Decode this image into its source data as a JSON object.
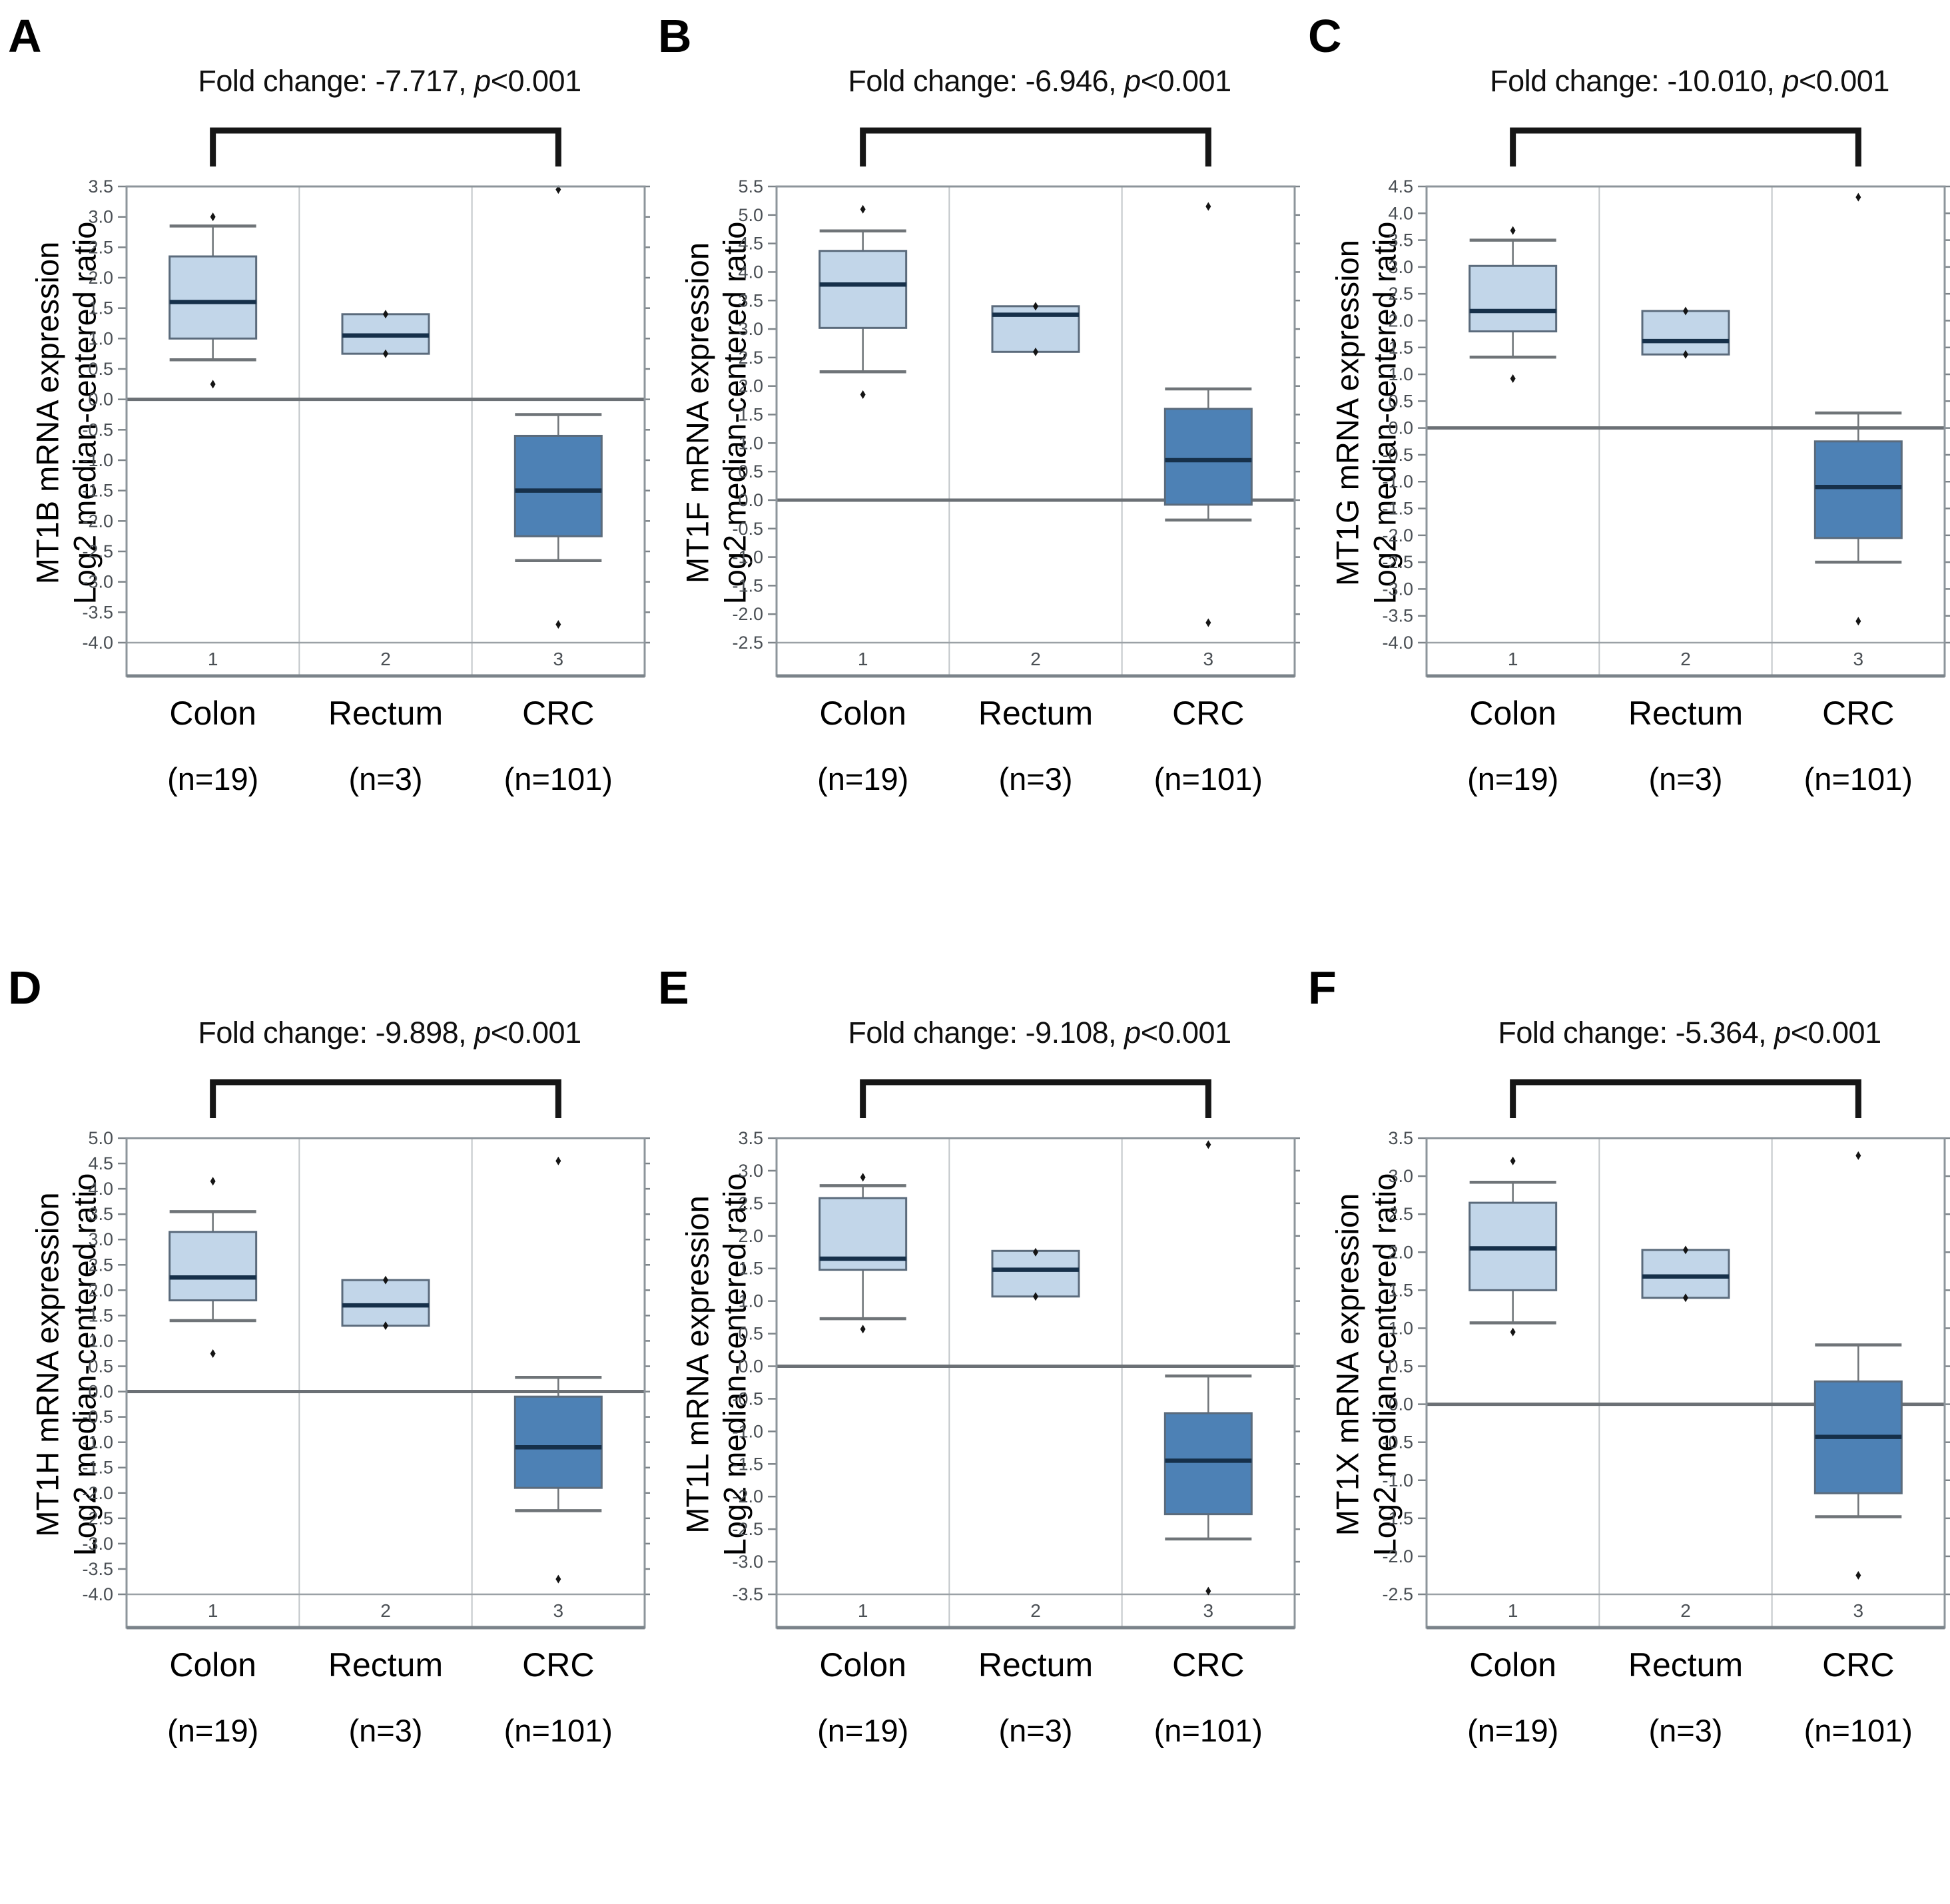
{
  "figure": {
    "background": "#ffffff",
    "description": "Six Oncomine box plots of metallothionein gene mRNA expression in Colon, Rectum and CRC samples"
  },
  "style": {
    "light_fill": "#c2d6e9",
    "dark_fill": "#4d81b5",
    "box_border": "#5b6b7c",
    "median_color": "#16304a",
    "whisker_color": "#6f7478",
    "frame_color": "#8d959b",
    "frame_bottom_color": "#7b838a",
    "separator_color": "#c2c6c9",
    "zero_line_color": "#6b7075",
    "min_line_color": "#9ba1a6",
    "tick_color": "#7d8489",
    "tick_label_color": "#4a4f54",
    "outlier_color": "#141414",
    "bracket_color": "#161616"
  },
  "panels": [
    {
      "letter": "A",
      "fold_text": "Fold change: -7.717, ",
      "p_symbol": "p",
      "p_value": "<0.001",
      "ylabel_line1": "MT1B mRNA expression",
      "ylabel_line2": "Log2 median-centered ratio",
      "groups": [
        {
          "name": "Colon",
          "n": "(n=19)",
          "tick": "1"
        },
        {
          "name": "Rectum",
          "n": "(n=3)",
          "tick": "2"
        },
        {
          "name": "CRC",
          "n": "(n=101)",
          "tick": "3"
        }
      ]
    },
    {
      "letter": "B",
      "fold_text": "Fold change: -6.946, ",
      "p_symbol": "p",
      "p_value": "<0.001",
      "ylabel_line1": "MT1F mRNA expression",
      "ylabel_line2": "Log2 median-centered ratio",
      "groups": [
        {
          "name": "Colon",
          "n": "(n=19)",
          "tick": "1"
        },
        {
          "name": "Rectum",
          "n": "(n=3)",
          "tick": "2"
        },
        {
          "name": "CRC",
          "n": "(n=101)",
          "tick": "3"
        }
      ]
    },
    {
      "letter": "C",
      "fold_text": "Fold change: -10.010, ",
      "p_symbol": "p",
      "p_value": "<0.001",
      "ylabel_line1": "MT1G mRNA expression",
      "ylabel_line2": "Log2 median-centered ratio",
      "groups": [
        {
          "name": "Colon",
          "n": "(n=19)",
          "tick": "1"
        },
        {
          "name": "Rectum",
          "n": "(n=3)",
          "tick": "2"
        },
        {
          "name": "CRC",
          "n": "(n=101)",
          "tick": "3"
        }
      ]
    },
    {
      "letter": "D",
      "fold_text": "Fold change: -9.898, ",
      "p_symbol": "p",
      "p_value": "<0.001",
      "ylabel_line1": "MT1H mRNA expression",
      "ylabel_line2": "Log2 median-centered ratio",
      "groups": [
        {
          "name": "Colon",
          "n": "(n=19)",
          "tick": "1"
        },
        {
          "name": "Rectum",
          "n": "(n=3)",
          "tick": "2"
        },
        {
          "name": "CRC",
          "n": "(n=101)",
          "tick": "3"
        }
      ]
    },
    {
      "letter": "E",
      "fold_text": "Fold change: -9.108, ",
      "p_symbol": "p",
      "p_value": "<0.001",
      "ylabel_line1": "MT1L mRNA expression",
      "ylabel_line2": "Log2 median-centered ratio",
      "groups": [
        {
          "name": "Colon",
          "n": "(n=19)",
          "tick": "1"
        },
        {
          "name": "Rectum",
          "n": "(n=3)",
          "tick": "2"
        },
        {
          "name": "CRC",
          "n": "(n=101)",
          "tick": "3"
        }
      ]
    },
    {
      "letter": "F",
      "fold_text": "Fold change: -5.364, ",
      "p_symbol": "p",
      "p_value": "<0.001",
      "ylabel_line1": "MT1X mRNA expression",
      "ylabel_line2": "Log2 median-centered ratio",
      "groups": [
        {
          "name": "Colon",
          "n": "(n=19)",
          "tick": "1"
        },
        {
          "name": "Rectum",
          "n": "(n=3)",
          "tick": "2"
        },
        {
          "name": "CRC",
          "n": "(n=101)",
          "tick": "3"
        }
      ]
    }
  ],
  "chart_data": [
    {
      "type": "box",
      "gene": "MT1B",
      "title": "Fold change: -7.717, p<0.001",
      "fold_change": -7.717,
      "p": "<0.001",
      "ylabel": "MT1B mRNA expression Log2 median-centered ratio",
      "ylim": [
        -4.0,
        3.5
      ],
      "ytick_step": 0.5,
      "categories": [
        "Colon (n=19)",
        "Rectum (n=3)",
        "CRC (n=101)"
      ],
      "boxes": [
        {
          "label": "Colon",
          "n": 19,
          "fill": "light",
          "whislo": 0.65,
          "q1": 1.0,
          "med": 1.6,
          "q3": 2.35,
          "whishi": 2.85,
          "outliers": [
            3.0,
            0.25
          ]
        },
        {
          "label": "Rectum",
          "n": 3,
          "fill": "light",
          "whislo": 0.75,
          "q1": 0.75,
          "med": 1.05,
          "q3": 1.4,
          "whishi": 1.4,
          "outliers": [
            1.4,
            0.75
          ]
        },
        {
          "label": "CRC",
          "n": 101,
          "fill": "dark",
          "whislo": -2.65,
          "q1": -2.25,
          "med": -1.5,
          "q3": -0.6,
          "whishi": -0.25,
          "outliers": [
            3.45,
            -3.7
          ]
        }
      ]
    },
    {
      "type": "box",
      "gene": "MT1F",
      "title": "Fold change: -6.946, p<0.001",
      "fold_change": -6.946,
      "p": "<0.001",
      "ylabel": "MT1F mRNA expression Log2 median-centered ratio",
      "ylim": [
        -2.5,
        5.5
      ],
      "ytick_step": 0.5,
      "categories": [
        "Colon (n=19)",
        "Rectum (n=3)",
        "CRC (n=101)"
      ],
      "boxes": [
        {
          "label": "Colon",
          "n": 19,
          "fill": "light",
          "whislo": 2.25,
          "q1": 3.02,
          "med": 3.78,
          "q3": 4.37,
          "whishi": 4.72,
          "outliers": [
            5.1,
            1.85
          ]
        },
        {
          "label": "Rectum",
          "n": 3,
          "fill": "light",
          "whislo": 2.6,
          "q1": 2.6,
          "med": 3.25,
          "q3": 3.4,
          "whishi": 3.4,
          "outliers": [
            3.4,
            2.6
          ]
        },
        {
          "label": "CRC",
          "n": 101,
          "fill": "dark",
          "whislo": -0.35,
          "q1": -0.08,
          "med": 0.7,
          "q3": 1.6,
          "whishi": 1.95,
          "outliers": [
            5.15,
            -2.15
          ]
        }
      ]
    },
    {
      "type": "box",
      "gene": "MT1G",
      "title": "Fold change: -10.010, p<0.001",
      "fold_change": -10.01,
      "p": "<0.001",
      "ylabel": "MT1G mRNA expression Log2 median-centered ratio",
      "ylim": [
        -4.0,
        4.5
      ],
      "ytick_step": 0.5,
      "categories": [
        "Colon (n=19)",
        "Rectum (n=3)",
        "CRC (n=101)"
      ],
      "boxes": [
        {
          "label": "Colon",
          "n": 19,
          "fill": "light",
          "whislo": 1.32,
          "q1": 1.8,
          "med": 2.18,
          "q3": 3.02,
          "whishi": 3.5,
          "outliers": [
            3.68,
            0.92
          ]
        },
        {
          "label": "Rectum",
          "n": 3,
          "fill": "light",
          "whislo": 1.37,
          "q1": 1.37,
          "med": 1.62,
          "q3": 2.18,
          "whishi": 2.18,
          "outliers": [
            2.18,
            1.37
          ]
        },
        {
          "label": "CRC",
          "n": 101,
          "fill": "dark",
          "whislo": -2.5,
          "q1": -2.05,
          "med": -1.1,
          "q3": -0.25,
          "whishi": 0.28,
          "outliers": [
            4.3,
            -3.6
          ]
        }
      ]
    },
    {
      "type": "box",
      "gene": "MT1H",
      "title": "Fold change: -9.898, p<0.001",
      "fold_change": -9.898,
      "p": "<0.001",
      "ylabel": "MT1H mRNA expression Log2 median-centered ratio",
      "ylim": [
        -4.0,
        5.0
      ],
      "ytick_step": 0.5,
      "categories": [
        "Colon (n=19)",
        "Rectum (n=3)",
        "CRC (n=101)"
      ],
      "boxes": [
        {
          "label": "Colon",
          "n": 19,
          "fill": "light",
          "whislo": 1.4,
          "q1": 1.8,
          "med": 2.25,
          "q3": 3.15,
          "whishi": 3.55,
          "outliers": [
            4.15,
            0.75
          ]
        },
        {
          "label": "Rectum",
          "n": 3,
          "fill": "light",
          "whislo": 1.3,
          "q1": 1.3,
          "med": 1.7,
          "q3": 2.2,
          "whishi": 2.2,
          "outliers": [
            2.2,
            1.3
          ]
        },
        {
          "label": "CRC",
          "n": 101,
          "fill": "dark",
          "whislo": -2.35,
          "q1": -1.9,
          "med": -1.1,
          "q3": -0.1,
          "whishi": 0.28,
          "outliers": [
            4.55,
            -3.7
          ]
        }
      ]
    },
    {
      "type": "box",
      "gene": "MT1L",
      "title": "Fold change: -9.108, p<0.001",
      "fold_change": -9.108,
      "p": "<0.001",
      "ylabel": "MT1L mRNA expression Log2 median-centered ratio",
      "ylim": [
        -3.5,
        3.5
      ],
      "ytick_step": 0.5,
      "categories": [
        "Colon (n=19)",
        "Rectum (n=3)",
        "CRC (n=101)"
      ],
      "boxes": [
        {
          "label": "Colon",
          "n": 19,
          "fill": "light",
          "whislo": 0.73,
          "q1": 1.48,
          "med": 1.65,
          "q3": 2.58,
          "whishi": 2.77,
          "outliers": [
            2.9,
            0.57
          ]
        },
        {
          "label": "Rectum",
          "n": 3,
          "fill": "light",
          "whislo": 1.07,
          "q1": 1.07,
          "med": 1.48,
          "q3": 1.77,
          "whishi": 1.77,
          "outliers": [
            1.75,
            1.07
          ]
        },
        {
          "label": "CRC",
          "n": 101,
          "fill": "dark",
          "whislo": -2.65,
          "q1": -2.27,
          "med": -1.45,
          "q3": -0.72,
          "whishi": -0.15,
          "outliers": [
            3.4,
            -3.45
          ]
        }
      ]
    },
    {
      "type": "box",
      "gene": "MT1X",
      "title": "Fold change: -5.364, p<0.001",
      "fold_change": -5.364,
      "p": "<0.001",
      "ylabel": "MT1X mRNA expression Log2 median-centered ratio",
      "ylim": [
        -2.5,
        3.5
      ],
      "ytick_step": 0.5,
      "categories": [
        "Colon (n=19)",
        "Rectum (n=3)",
        "CRC (n=101)"
      ],
      "boxes": [
        {
          "label": "Colon",
          "n": 19,
          "fill": "light",
          "whislo": 1.07,
          "q1": 1.5,
          "med": 2.05,
          "q3": 2.65,
          "whishi": 2.92,
          "outliers": [
            3.2,
            0.95
          ]
        },
        {
          "label": "Rectum",
          "n": 3,
          "fill": "light",
          "whislo": 1.4,
          "q1": 1.4,
          "med": 1.68,
          "q3": 2.03,
          "whishi": 2.03,
          "outliers": [
            2.03,
            1.4
          ]
        },
        {
          "label": "CRC",
          "n": 101,
          "fill": "dark",
          "whislo": -1.48,
          "q1": -1.17,
          "med": -0.43,
          "q3": 0.3,
          "whishi": 0.78,
          "outliers": [
            3.27,
            -2.25
          ]
        }
      ]
    }
  ]
}
